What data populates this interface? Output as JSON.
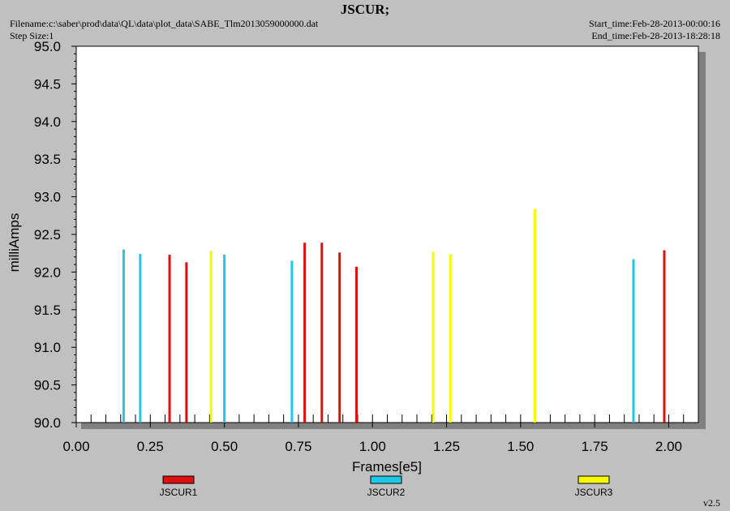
{
  "header": {
    "title": "JSCUR;",
    "filename": "Filename:c:\\saber\\prod\\data\\QL\\data\\plot_data\\SABE_Tlm2013059000000.dat",
    "step_size": "Step Size:1",
    "start_time": "Start_time:Feb-28-2013-00:00:16",
    "end_time": "End_time:Feb-28-2013-18:28:18"
  },
  "footer": {
    "version": "v2.5"
  },
  "colors": {
    "JSCUR1": "#e01010",
    "JSCUR2": "#20c8e8",
    "JSCUR3": "#f8f800"
  },
  "chart_data": {
    "type": "bar",
    "title": "JSCUR;",
    "xlabel": "Frames[e5]",
    "ylabel": "milliAmps",
    "xlim": [
      0.0,
      2.1
    ],
    "ylim": [
      90.0,
      95.0
    ],
    "x_ticks": [
      "0.00",
      "0.25",
      "0.50",
      "0.75",
      "1.00",
      "1.25",
      "1.50",
      "1.75",
      "2.00"
    ],
    "x_tick_values": [
      0.0,
      0.25,
      0.5,
      0.75,
      1.0,
      1.25,
      1.5,
      1.75,
      2.0
    ],
    "y_ticks": [
      "90.0",
      "90.5",
      "91.0",
      "91.5",
      "92.0",
      "92.5",
      "93.0",
      "93.5",
      "94.0",
      "94.5",
      "95.0"
    ],
    "y_tick_values": [
      90.0,
      90.5,
      91.0,
      91.5,
      92.0,
      92.5,
      93.0,
      93.5,
      94.0,
      94.5,
      95.0
    ],
    "grid": false,
    "legend_position": "bottom",
    "series": [
      {
        "name": "JSCUR1",
        "x": [
          0.315,
          0.372,
          0.771,
          0.829,
          0.889,
          0.946,
          1.985
        ],
        "y": [
          92.23,
          92.13,
          92.39,
          92.39,
          92.26,
          92.07,
          92.29
        ]
      },
      {
        "name": "JSCUR2",
        "x": [
          0.16,
          0.216,
          0.5,
          0.728,
          1.881
        ],
        "y": [
          92.3,
          92.24,
          92.23,
          92.15,
          92.17
        ]
      },
      {
        "name": "JSCUR3",
        "x": [
          0.455,
          1.205,
          1.263,
          1.548
        ],
        "y": [
          92.28,
          92.27,
          92.24,
          92.84
        ]
      }
    ]
  }
}
